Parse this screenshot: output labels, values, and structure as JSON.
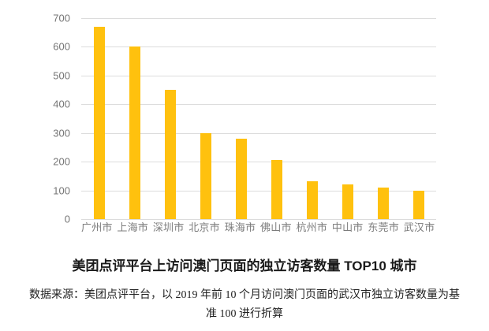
{
  "chart_data": {
    "type": "bar",
    "categories": [
      "广州市",
      "上海市",
      "深圳市",
      "北京市",
      "珠海市",
      "佛山市",
      "杭州市",
      "中山市",
      "东莞市",
      "武汉市"
    ],
    "values": [
      670,
      600,
      450,
      300,
      280,
      205,
      133,
      120,
      110,
      100
    ],
    "title": "美团点评平台上访问澳门页面的独立访客数量 TOP10 城市",
    "xlabel": "",
    "ylabel": "",
    "ylim": [
      0,
      700
    ],
    "yticks": [
      0,
      100,
      200,
      300,
      400,
      500,
      600,
      700
    ],
    "grid": true,
    "legend": false,
    "bar_color": "#FFC10E",
    "gridline_color": "#dcdcdc",
    "axis_text_color": "#757575"
  },
  "source_note": {
    "line1": "数据来源：美团点评平台，以 2019 年前 10 个月访问澳门页面的武汉市独立访客数量为基",
    "line2": "准 100 进行折算"
  }
}
